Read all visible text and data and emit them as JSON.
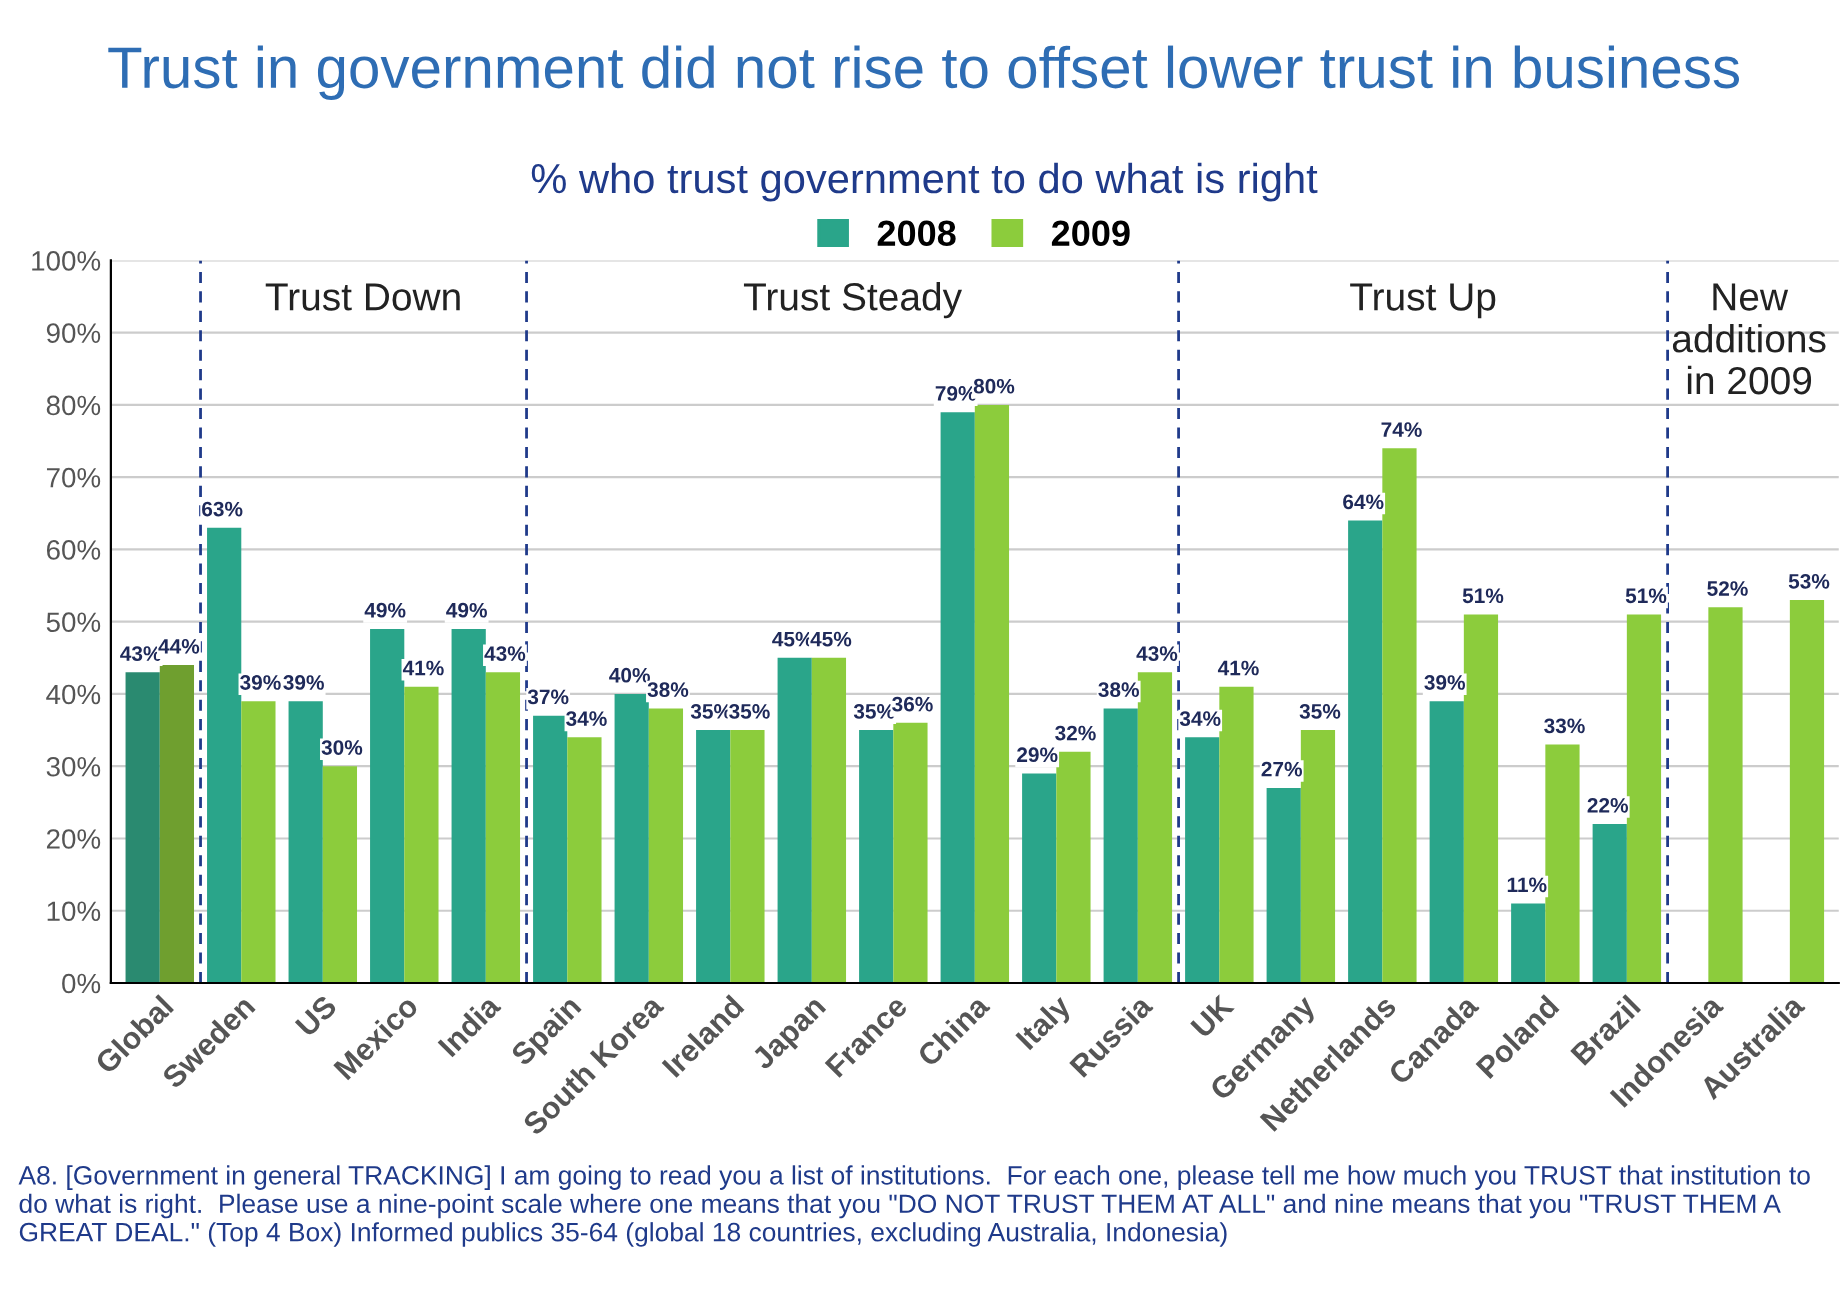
{
  "chart_data": {
    "type": "bar",
    "title": "Trust in government did not rise to offset lower trust in business",
    "subtitle": "% who trust government to do what is right",
    "categories": [
      "Global",
      "Sweden",
      "US",
      "Mexico",
      "India",
      "Spain",
      "South Korea",
      "Ireland",
      "Japan",
      "France",
      "China",
      "Italy",
      "Russia",
      "UK",
      "Germany",
      "Netherlands",
      "Canada",
      "Poland",
      "Brazil",
      "Indonesia",
      "Australia"
    ],
    "series": [
      {
        "name": "2008",
        "color": "#2aa58a",
        "colors": [
          "#2a8a70",
          "#2aa58a",
          "#2aa58a",
          "#2aa58a",
          "#2aa58a",
          "#2aa58a",
          "#2aa58a",
          "#2aa58a",
          "#2aa58a",
          "#2aa58a",
          "#2aa58a",
          "#2aa58a",
          "#2aa58a",
          "#2aa58a",
          "#2aa58a",
          "#2aa58a",
          "#2aa58a",
          "#2aa58a",
          "#2aa58a",
          "#2aa58a",
          "#2aa58a"
        ],
        "values": [
          43,
          63,
          39,
          49,
          49,
          37,
          40,
          35,
          45,
          35,
          79,
          29,
          38,
          34,
          27,
          64,
          39,
          11,
          22,
          null,
          null
        ]
      },
      {
        "name": "2009",
        "color": "#8ccc3c",
        "colors": [
          "#6f9f2f",
          "#8ccc3c",
          "#8ccc3c",
          "#8ccc3c",
          "#8ccc3c",
          "#8ccc3c",
          "#8ccc3c",
          "#8ccc3c",
          "#8ccc3c",
          "#8ccc3c",
          "#8ccc3c",
          "#8ccc3c",
          "#8ccc3c",
          "#8ccc3c",
          "#8ccc3c",
          "#8ccc3c",
          "#8ccc3c",
          "#8ccc3c",
          "#8ccc3c",
          "#8ccc3c",
          "#8ccc3c"
        ],
        "values": [
          44,
          39,
          30,
          41,
          43,
          34,
          38,
          35,
          45,
          36,
          80,
          32,
          43,
          41,
          35,
          74,
          51,
          33,
          51,
          52,
          53
        ]
      }
    ],
    "value_labels": [
      [
        "43%",
        "63%",
        "39%",
        "49%",
        "49%",
        "37%",
        "40%",
        "35%",
        "45%",
        "35%",
        "79%",
        "29%",
        "38%",
        "34%",
        "27%",
        "64%",
        "39%",
        "11%",
        "22%",
        null,
        null
      ],
      [
        "44%",
        "39%",
        "30%",
        "41%",
        "43%",
        "34%",
        "38%",
        "35%",
        "45%",
        "36%",
        "80%",
        "32%",
        "43%",
        "41%",
        "35%",
        "74%",
        "51%",
        "33%",
        "51%",
        "52%",
        "53%"
      ]
    ],
    "ylim": [
      0,
      100
    ],
    "yticks": [
      {
        "value": 0,
        "label": "0%"
      },
      {
        "value": 10,
        "label": "10%"
      },
      {
        "value": 20,
        "label": "20%"
      },
      {
        "value": 30,
        "label": "30%"
      },
      {
        "value": 40,
        "label": "40%"
      },
      {
        "value": 50,
        "label": "50%"
      },
      {
        "value": 60,
        "label": "60%"
      },
      {
        "value": 70,
        "label": "70%"
      },
      {
        "value": 80,
        "label": "80%"
      },
      {
        "value": 90,
        "label": "90%"
      },
      {
        "value": 100,
        "label": "100%"
      }
    ],
    "grid": "y",
    "legend": "top",
    "annotations": [
      "Trust Down",
      "Trust Steady",
      "Trust Up",
      "New\nadditions\nin 2009",
      "A8. [Government in general TRACKING] I am going to read you a list of institutions.  For each one, please tell me how much you TRUST that institution to do what is right.  Please use a nine-point scale where one means that you \"DO NOT TRUST THEM AT ALL\" and nine means that you \"TRUST THEM A GREAT DEAL.\" (Top 4 Box) Informed publics 35-64 (global 18 countries, excluding Australia, Indonesia)"
    ]
  }
}
